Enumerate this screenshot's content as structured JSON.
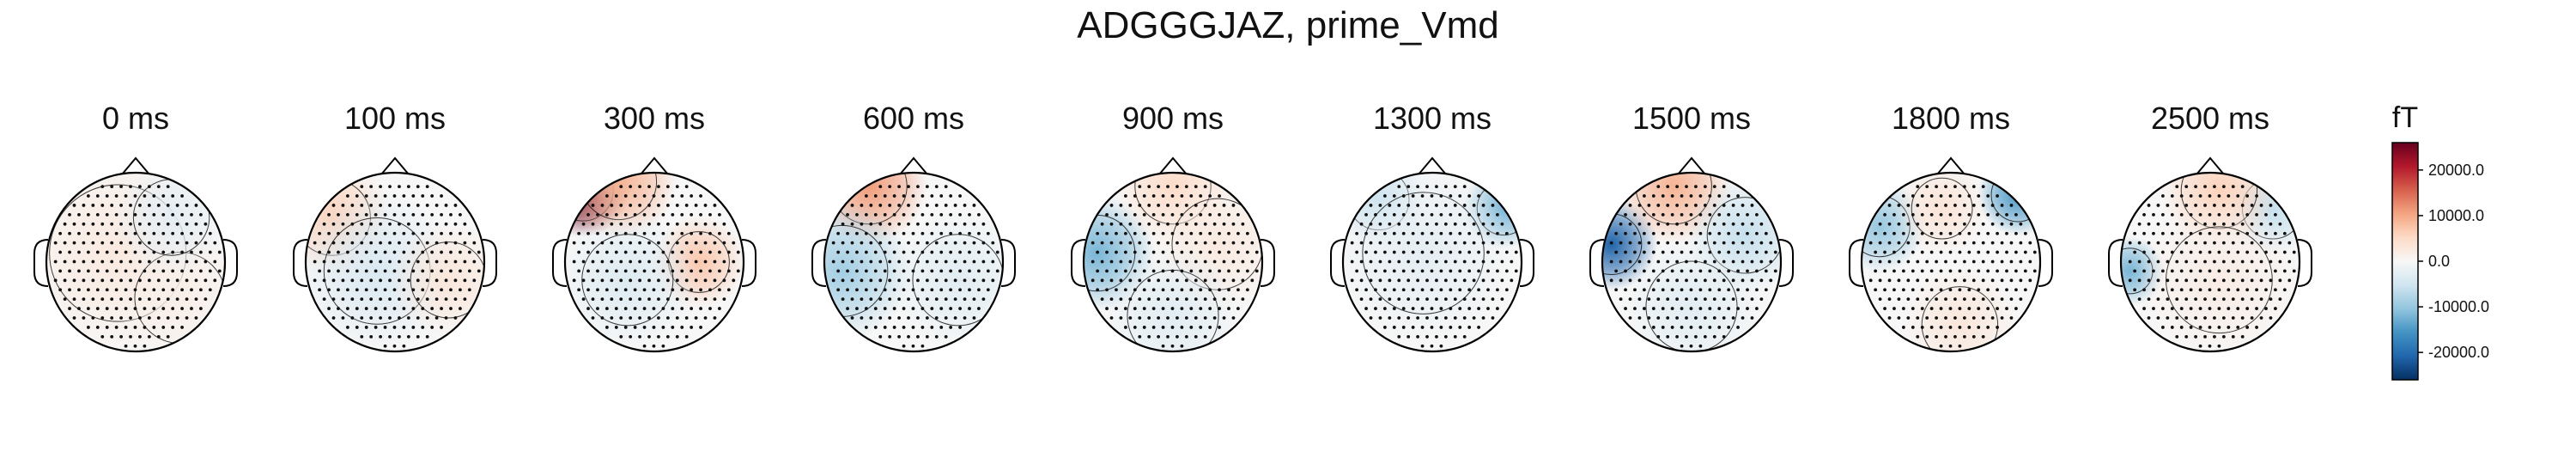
{
  "chart_data": {
    "type": "heatmap",
    "title": "ADGGGJAZ, prime_Vmd",
    "panels": [
      {
        "label": "0 ms",
        "blobs": [
          {
            "x": -0.2,
            "y": 0.1,
            "r": 0.9,
            "v": 2500
          },
          {
            "x": 0.5,
            "y": -0.4,
            "r": 0.6,
            "v": 1500
          },
          {
            "x": 0.4,
            "y": 0.5,
            "r": 0.5,
            "v": -2500
          }
        ]
      },
      {
        "label": "100 ms",
        "blobs": [
          {
            "x": -0.7,
            "y": 0.5,
            "r": 0.5,
            "v": 6000
          },
          {
            "x": -0.2,
            "y": -0.1,
            "r": 0.7,
            "v": -4000
          },
          {
            "x": 0.6,
            "y": -0.2,
            "r": 0.5,
            "v": 3000
          }
        ]
      },
      {
        "label": "300 ms",
        "blobs": [
          {
            "x": -0.8,
            "y": 0.8,
            "r": 0.4,
            "v": 26000
          },
          {
            "x": -0.4,
            "y": 0.9,
            "r": 0.5,
            "v": 9000
          },
          {
            "x": 0.5,
            "y": 0.0,
            "r": 0.4,
            "v": 7000
          },
          {
            "x": -0.3,
            "y": -0.2,
            "r": 0.6,
            "v": -3500
          }
        ]
      },
      {
        "label": "600 ms",
        "blobs": [
          {
            "x": -0.5,
            "y": 0.85,
            "r": 0.5,
            "v": 11000
          },
          {
            "x": -0.8,
            "y": -0.1,
            "r": 0.6,
            "v": -9000
          },
          {
            "x": 0.5,
            "y": -0.2,
            "r": 0.6,
            "v": -3000
          }
        ]
      },
      {
        "label": "900 ms",
        "blobs": [
          {
            "x": -0.85,
            "y": 0.1,
            "r": 0.5,
            "v": -12000
          },
          {
            "x": 0.0,
            "y": 0.85,
            "r": 0.5,
            "v": 5000
          },
          {
            "x": 0.5,
            "y": 0.2,
            "r": 0.6,
            "v": 2500
          },
          {
            "x": 0.0,
            "y": -0.6,
            "r": 0.6,
            "v": -3000
          }
        ]
      },
      {
        "label": "1300 ms",
        "blobs": [
          {
            "x": 0.8,
            "y": 0.6,
            "r": 0.35,
            "v": -12000
          },
          {
            "x": -0.6,
            "y": 0.7,
            "r": 0.4,
            "v": -6000
          },
          {
            "x": -0.1,
            "y": 0.1,
            "r": 0.8,
            "v": -2500
          }
        ]
      },
      {
        "label": "1500 ms",
        "blobs": [
          {
            "x": -0.9,
            "y": 0.2,
            "r": 0.4,
            "v": -21000
          },
          {
            "x": -0.2,
            "y": 0.85,
            "r": 0.5,
            "v": 9000
          },
          {
            "x": 0.6,
            "y": 0.3,
            "r": 0.5,
            "v": -6000
          },
          {
            "x": 0.0,
            "y": -0.5,
            "r": 0.6,
            "v": -3000
          }
        ]
      },
      {
        "label": "1800 ms",
        "blobs": [
          {
            "x": 0.75,
            "y": 0.75,
            "r": 0.35,
            "v": -15000
          },
          {
            "x": -0.8,
            "y": 0.4,
            "r": 0.4,
            "v": -10000
          },
          {
            "x": -0.1,
            "y": 0.6,
            "r": 0.4,
            "v": 3500
          },
          {
            "x": 0.1,
            "y": -0.7,
            "r": 0.5,
            "v": 3000
          }
        ]
      },
      {
        "label": "2500 ms",
        "blobs": [
          {
            "x": -0.9,
            "y": -0.1,
            "r": 0.3,
            "v": -12000
          },
          {
            "x": 0.7,
            "y": 0.6,
            "r": 0.4,
            "v": -6000
          },
          {
            "x": 0.1,
            "y": 0.8,
            "r": 0.5,
            "v": 6000
          },
          {
            "x": 0.1,
            "y": -0.2,
            "r": 0.7,
            "v": 2000
          }
        ]
      }
    ],
    "colorbar": {
      "label": "fT",
      "range": [
        -26000,
        26000
      ],
      "ticks": [
        20000,
        10000,
        0,
        -10000,
        -20000
      ],
      "tick_labels": [
        "20000.0",
        "10000.0",
        "0.0",
        "-10000.0",
        "-20000.0"
      ],
      "colormap": "RdBu_r"
    }
  }
}
